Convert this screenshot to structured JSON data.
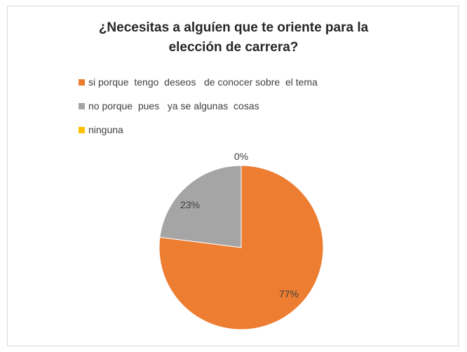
{
  "chart_data": {
    "type": "pie",
    "title_lines": [
      "¿Necesitas  a alguíen que te oriente  para la",
      "elección de  carrera?"
    ],
    "legend_position": "top-left",
    "series": [
      {
        "name": "si porque  tengo  deseos   de conocer sobre  el tema",
        "value": 77,
        "label": "77%",
        "color": "#ed7d31"
      },
      {
        "name": "no porque  pues   ya se algunas  cosas",
        "value": 23,
        "label": "23%",
        "color": "#a5a5a5"
      },
      {
        "name": "ninguna",
        "value": 0,
        "label": "0%",
        "color": "#ffc000"
      }
    ]
  }
}
